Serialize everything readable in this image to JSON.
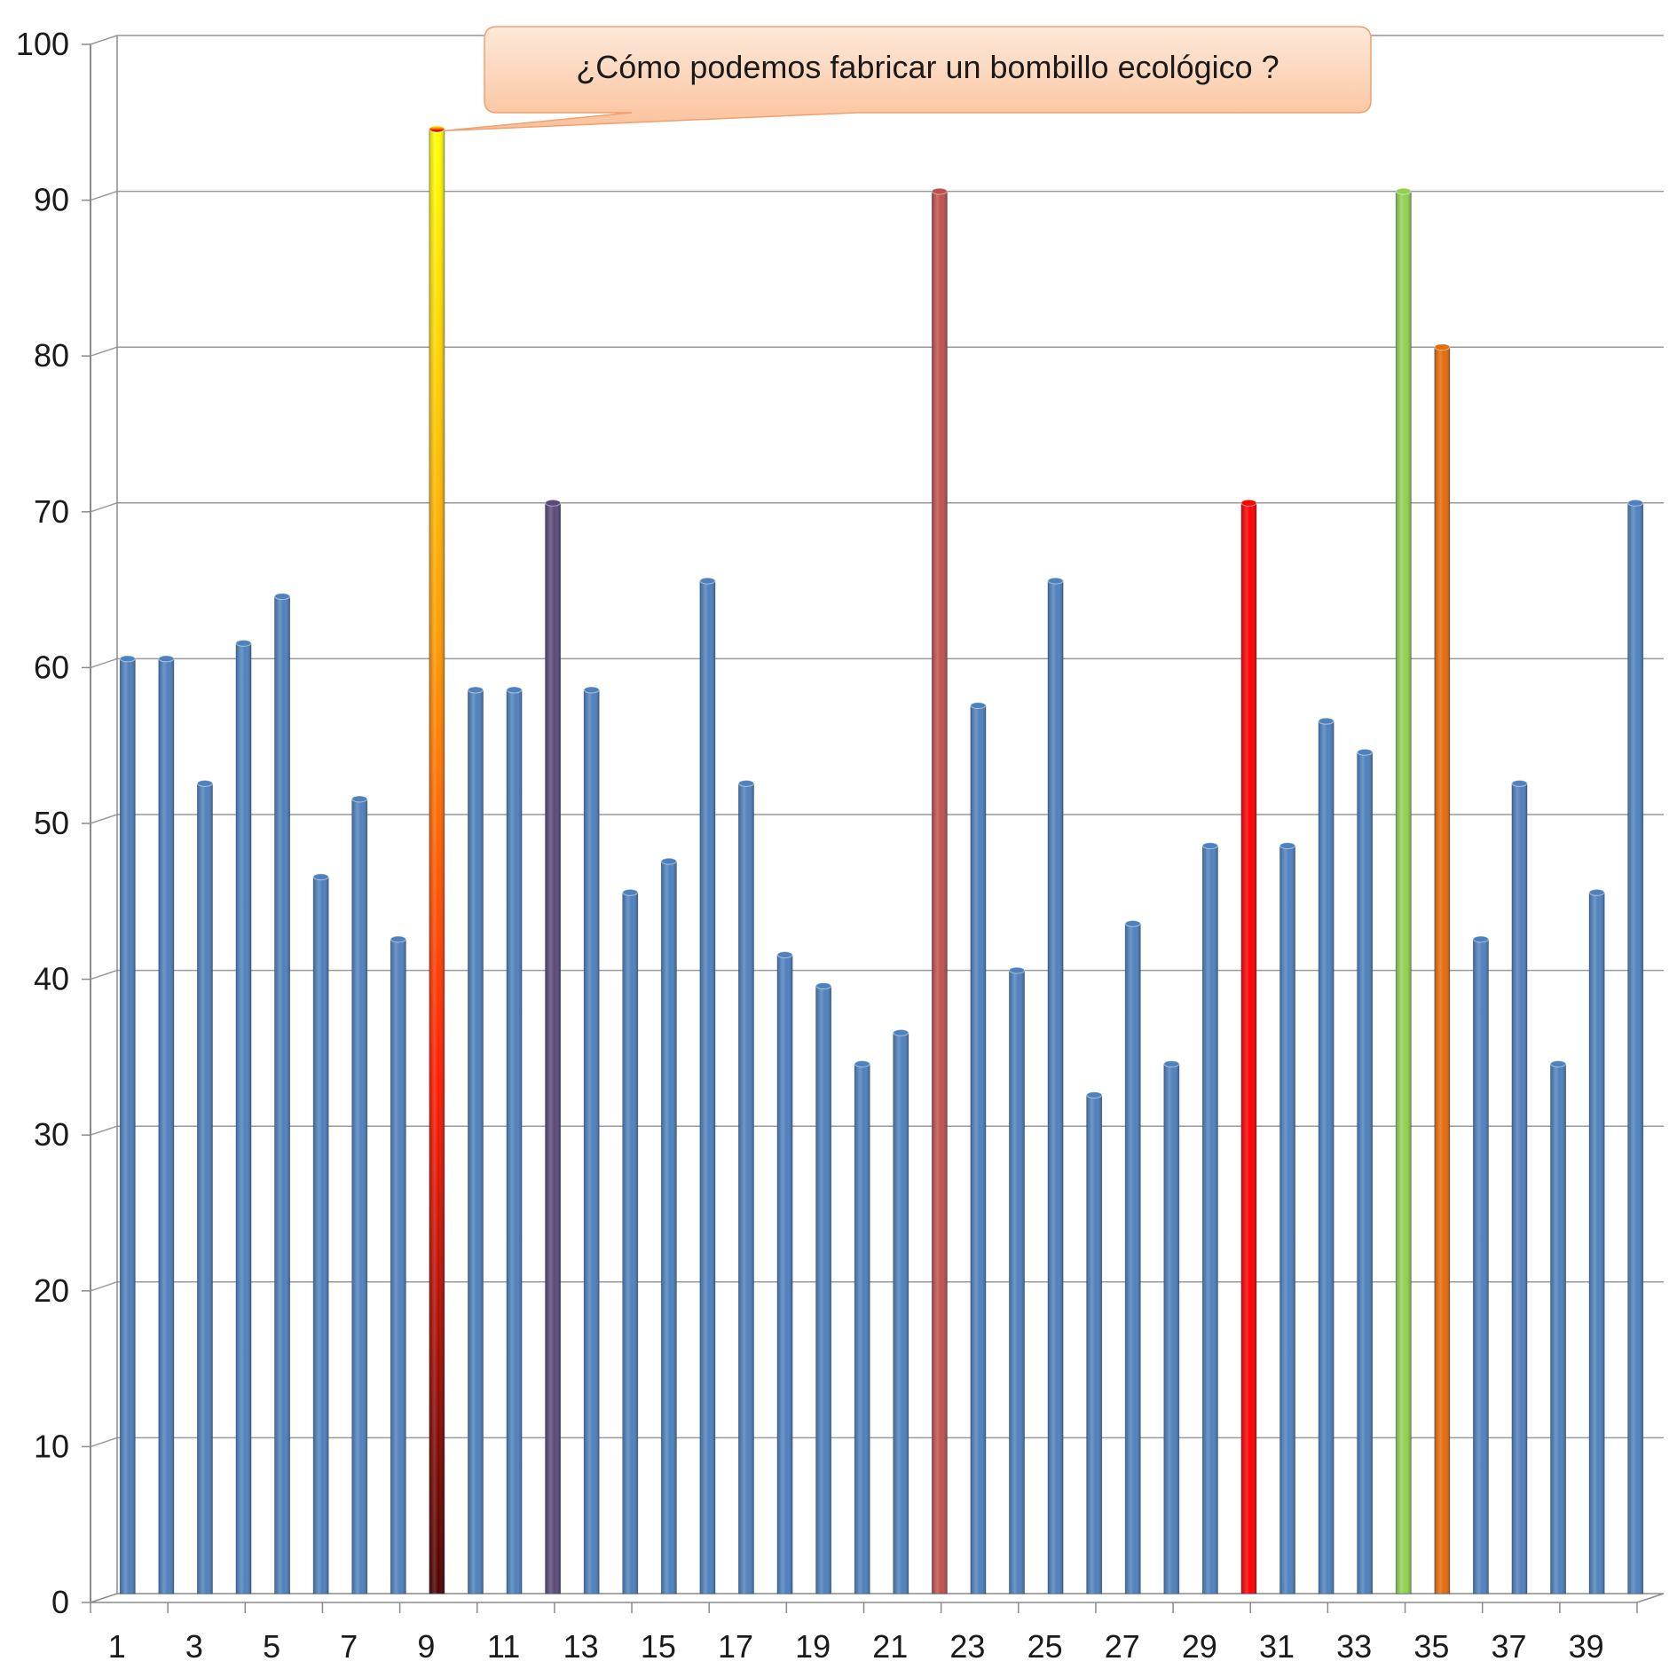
{
  "chart_data": {
    "type": "bar",
    "title": "",
    "xlabel": "",
    "ylabel": "",
    "ylim": [
      0,
      100
    ],
    "y_ticks": [
      0,
      10,
      20,
      30,
      40,
      50,
      60,
      70,
      80,
      90,
      100
    ],
    "grid": true,
    "legend": "none",
    "x_tick_labels": [
      "1",
      "3",
      "5",
      "7",
      "9",
      "11",
      "13",
      "15",
      "17",
      "19",
      "21",
      "23",
      "25",
      "27",
      "29",
      "31",
      "33",
      "35",
      "37",
      "39"
    ],
    "categories": [
      "1",
      "2",
      "3",
      "4",
      "5",
      "6",
      "7",
      "8",
      "9",
      "10",
      "11",
      "12",
      "13",
      "14",
      "15",
      "16",
      "17",
      "18",
      "19",
      "20",
      "21",
      "22",
      "23",
      "24",
      "25",
      "26",
      "27",
      "28",
      "29",
      "30",
      "31",
      "32",
      "33",
      "34",
      "35",
      "36",
      "37",
      "38",
      "39",
      "40"
    ],
    "values": [
      60,
      60,
      52,
      61,
      64,
      46,
      51,
      42,
      94,
      58,
      58,
      70,
      58,
      45,
      47,
      65,
      52,
      41,
      39,
      34,
      36,
      90,
      57,
      40,
      65,
      32,
      43,
      34,
      48,
      70,
      48,
      56,
      54,
      90,
      80,
      42,
      52,
      34,
      45,
      70
    ],
    "default_color": "#4f81bd",
    "highlight_colors": {
      "9": "gradient-yellow-red",
      "12": "#5b4a78",
      "22": "#c0504d",
      "30": "#ff0000",
      "34": "#92d050",
      "35": "#e46c0a"
    },
    "annotations": [
      {
        "text": "¿Cómo podemos fabricar un bombillo ecológico ?",
        "target_category": "9"
      }
    ]
  },
  "colors": {
    "axis": "#8a8a8a",
    "grid": "#9a9a9a",
    "callout_fill_top": "#fde4d0",
    "callout_fill_bottom": "#fbc39a",
    "callout_border": "#f0a070"
  }
}
